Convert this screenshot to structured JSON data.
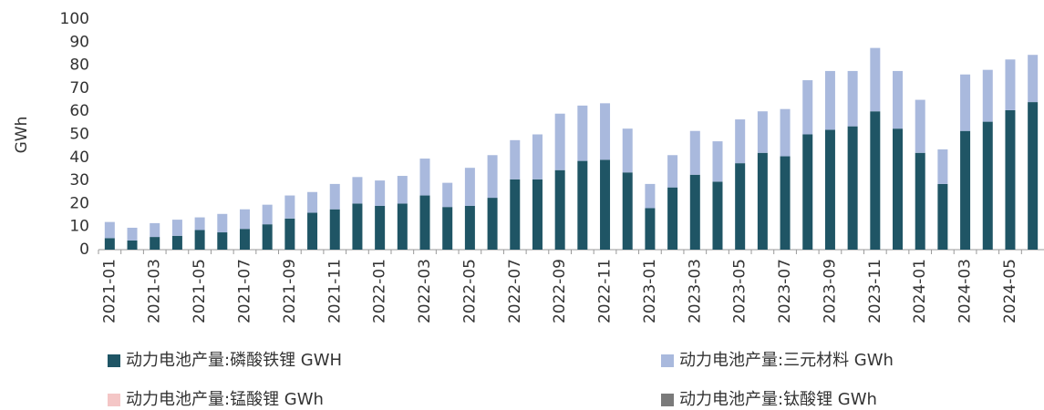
{
  "chart_data": {
    "type": "stacked_bar",
    "y_label": "GWh",
    "categories": [
      "2021-01",
      null,
      "2021-03",
      null,
      "2021-05",
      null,
      "2021-07",
      null,
      "2021-09",
      null,
      "2021-11",
      null,
      "2022-01",
      null,
      "2022-03",
      null,
      "2022-05",
      null,
      "2022-07",
      null,
      "2022-09",
      null,
      "2022-11",
      null,
      "2023-01",
      null,
      "2023-03",
      null,
      "2023-05",
      null,
      "2023-07",
      null,
      "2023-09",
      null,
      "2023-11",
      null,
      "2024-01",
      null,
      "2024-03",
      null,
      "2024-05",
      null
    ],
    "series": [
      {
        "name": "动力电池产量:磷酸铁锂 GWH",
        "color": "#1f5565",
        "values": [
          5,
          4,
          5.5,
          6,
          8.5,
          7.5,
          9,
          11,
          13.5,
          16,
          17.5,
          20,
          19,
          20,
          23.5,
          18.5,
          19,
          22.5,
          30.5,
          30.5,
          34.5,
          38.5,
          39,
          33.5,
          18,
          27,
          32.5,
          29.5,
          37.5,
          42,
          40.5,
          50,
          52,
          53.5,
          60,
          52.5,
          42,
          28.5,
          51.5,
          55.5,
          60.5,
          64
        ]
      },
      {
        "name": "动力电池产量:三元材料 GWh",
        "color": "#a9b9dd",
        "values": [
          7,
          5.5,
          6,
          7,
          5.5,
          8,
          8.5,
          8.5,
          10,
          9,
          11,
          11.5,
          11,
          12,
          16,
          10.5,
          16.5,
          18.5,
          17,
          19.5,
          24.5,
          24,
          24.5,
          19,
          10.5,
          14,
          19,
          17.5,
          19,
          18,
          20.5,
          23.5,
          25.5,
          24,
          27.5,
          25,
          23,
          15,
          24.5,
          22.5,
          22,
          20.5
        ]
      },
      {
        "name": "动力电池产量:锰酸锂 GWh",
        "color": "#f4c6c6",
        "values": [
          0,
          0,
          0,
          0,
          0,
          0,
          0,
          0,
          0,
          0,
          0,
          0,
          0,
          0,
          0,
          0,
          0,
          0,
          0,
          0,
          0,
          0,
          0,
          0,
          0,
          0,
          0,
          0,
          0,
          0,
          0,
          0,
          0,
          0,
          0,
          0,
          0,
          0,
          0,
          0,
          0,
          0
        ]
      },
      {
        "name": "动力电池产量:钛酸锂 GWh",
        "color": "#7a7a7a",
        "values": [
          0,
          0,
          0,
          0,
          0,
          0,
          0,
          0,
          0,
          0,
          0,
          0,
          0,
          0,
          0,
          0,
          0,
          0,
          0,
          0,
          0,
          0,
          0,
          0,
          0,
          0,
          0,
          0,
          0,
          0,
          0,
          0,
          0,
          0,
          0,
          0,
          0,
          0,
          0,
          0,
          0,
          0
        ]
      }
    ],
    "ylim": [
      0,
      100
    ],
    "yticks": [
      0,
      10,
      20,
      30,
      40,
      50,
      60,
      70,
      80,
      90,
      100
    ],
    "grid": false
  }
}
